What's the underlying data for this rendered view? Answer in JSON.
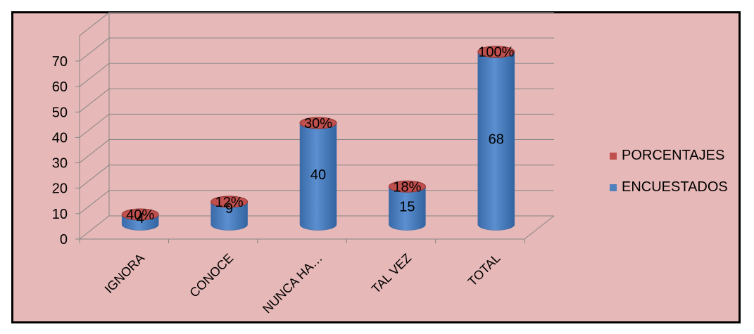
{
  "chart_data": {
    "type": "bar",
    "categories": [
      "IGNORA",
      "CONOCE",
      "NUNCA HA…",
      "TAL VEZ",
      "TOTAL"
    ],
    "series": [
      {
        "name": "ENCUESTADOS",
        "values": [
          4,
          9,
          40,
          15,
          68
        ],
        "labels": [
          "4",
          "9",
          "40",
          "15",
          "68"
        ],
        "color": "#4f81bd"
      },
      {
        "name": "PORCENTAJES",
        "values": [
          0.4,
          0.12,
          0.3,
          0.18,
          1.0
        ],
        "labels": [
          "40%",
          "12%",
          "30%",
          "18%",
          "100%"
        ],
        "color": "#c0504d"
      }
    ],
    "yticks": [
      0,
      10,
      20,
      30,
      40,
      50,
      60,
      70
    ],
    "ylim": [
      0,
      80
    ],
    "grid": true,
    "legend_position": "right",
    "style": "3d-cylinder"
  }
}
